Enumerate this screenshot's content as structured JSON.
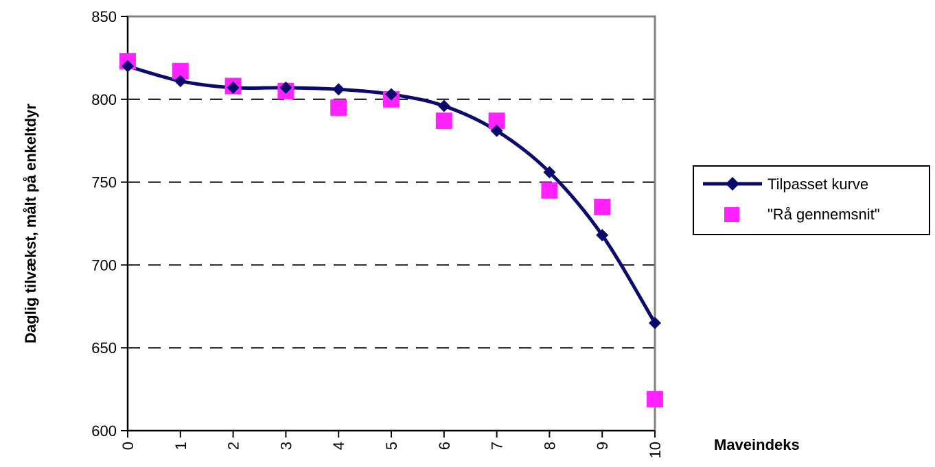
{
  "chart_data": {
    "type": "line",
    "title": "",
    "xlabel": "Maveindeks",
    "ylabel": "Daglig tilvækst, målt på enkeltdyr",
    "x": [
      0,
      1,
      2,
      3,
      4,
      5,
      6,
      7,
      8,
      9,
      10
    ],
    "xticks": [
      "0",
      "1",
      "2",
      "3",
      "4",
      "5",
      "6",
      "7",
      "8",
      "9",
      "10"
    ],
    "ylim": [
      600,
      850
    ],
    "yticks": [
      "600",
      "650",
      "700",
      "750",
      "800",
      "850"
    ],
    "grid": "horizontal-dashed",
    "legend_position": "right",
    "series": [
      {
        "name": "Tilpasset kurve",
        "style": "line-diamond",
        "color": "#0a0a6e",
        "values": [
          820,
          811,
          807,
          807,
          806,
          803,
          796,
          781,
          756,
          718,
          665
        ]
      },
      {
        "name": "\"Rå gennemsnit\"",
        "style": "square-marker",
        "color": "#ff22ff",
        "values": [
          823,
          817,
          808,
          805,
          795,
          800,
          787,
          787,
          745,
          735,
          619
        ]
      }
    ]
  }
}
